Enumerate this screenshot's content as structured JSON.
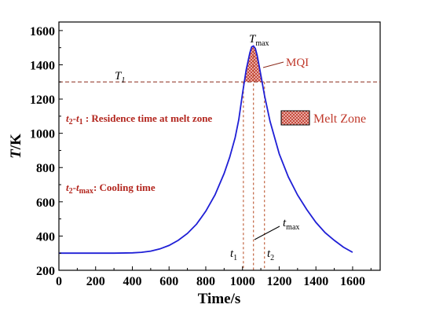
{
  "chart_data": {
    "type": "line",
    "xlabel": "Time/s",
    "ylabel": {
      "var": "T",
      "unit": "/K"
    },
    "xlim": [
      0,
      1750
    ],
    "ylim": [
      200,
      1650
    ],
    "x_ticks": [
      0,
      200,
      400,
      600,
      800,
      1000,
      1200,
      1400,
      1600
    ],
    "y_ticks": [
      200,
      400,
      600,
      800,
      1000,
      1200,
      1400,
      1600
    ],
    "series": [
      {
        "color": "#1f1fd6",
        "x": [
          0,
          100,
          200,
          300,
          400,
          450,
          500,
          550,
          600,
          650,
          700,
          750,
          800,
          850,
          900,
          930,
          960,
          980,
          1000,
          1020,
          1040,
          1050,
          1060,
          1070,
          1080,
          1090,
          1100,
          1120,
          1150,
          1200,
          1250,
          1300,
          1350,
          1400,
          1450,
          1500,
          1550,
          1600
        ],
        "y": [
          300,
          300,
          300,
          300,
          302,
          305,
          312,
          325,
          345,
          375,
          415,
          470,
          545,
          640,
          765,
          860,
          975,
          1080,
          1230,
          1370,
          1470,
          1505,
          1510,
          1495,
          1455,
          1400,
          1340,
          1220,
          1070,
          880,
          745,
          640,
          555,
          480,
          420,
          375,
          335,
          305
        ]
      }
    ],
    "threshold": {
      "label_var": "T",
      "label_sub": "1",
      "value": 1300
    },
    "peak": {
      "label_var": "T",
      "label_sub": "max",
      "x": 1060,
      "y": 1510
    },
    "markers": [
      {
        "label_var": "t",
        "label_sub": "1",
        "x": 1005
      },
      {
        "label_var": "t",
        "label_sub": "max",
        "x": 1060
      },
      {
        "label_var": "t",
        "label_sub": "2",
        "x": 1120
      }
    ],
    "annotations": {
      "mqi": "MQI",
      "residence": {
        "a": "t",
        "a_sub": "2",
        "dash": "-",
        "b": "t",
        "b_sub": "1",
        "text": " : Residence time at melt zone"
      },
      "cooling": {
        "a": "t",
        "a_sub": "2",
        "dash": "-",
        "b": "t",
        "b_sub": "max",
        "text": ": Cooling time"
      }
    },
    "legend": {
      "label": "Melt Zone",
      "position": "right"
    },
    "colors": {
      "line": "#1f1fd6",
      "threshold": "#8b2a1a",
      "markers": "#b5451b",
      "fill": "#d32f2f",
      "annotation": "#b3261e"
    }
  }
}
